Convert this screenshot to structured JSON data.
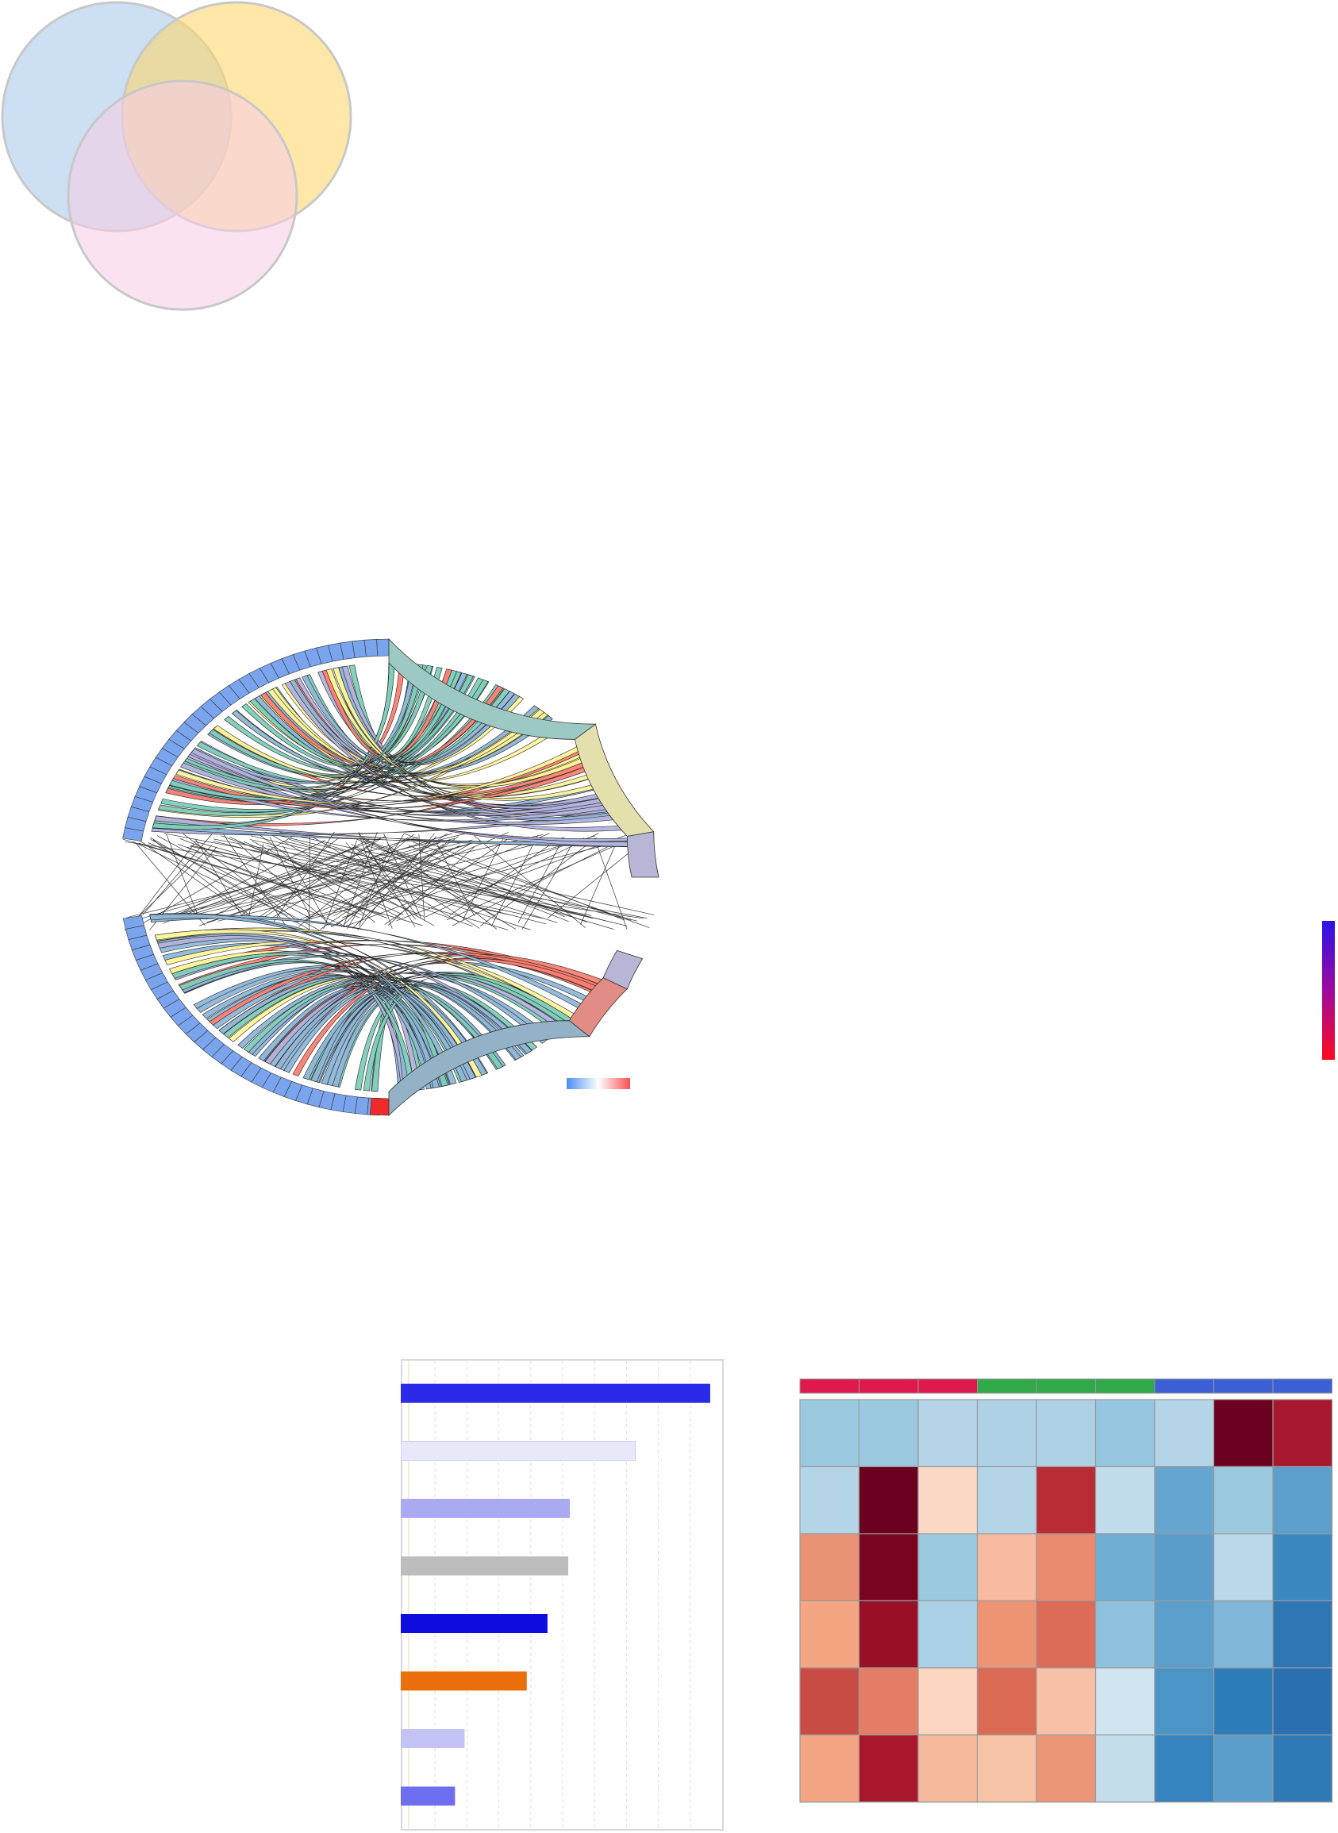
{
  "figure": {
    "venn": {
      "circles": [
        {
          "key": "A",
          "fill": "#a8c8e8"
        },
        {
          "key": "B",
          "fill": "#fdd56b"
        },
        {
          "key": "C",
          "fill": "#f6cde6"
        }
      ],
      "stroke": "#c8c8c8"
    },
    "chord": {
      "outer_ring_color": "#7aa5ee",
      "top_chord_colors": [
        "#7fcdbb",
        "#fff59d",
        "#b3b3de",
        "#fb8072",
        "#8fb7d8"
      ],
      "bottom_chord_colors": [
        "#8fb7d8",
        "#7fcdbb",
        "#fff59d",
        "#b3b3de",
        "#fb8072"
      ],
      "sector_colors": {
        "teal": "#9cc9c3",
        "olive": "#e3e0ae",
        "lavender": "#b7b6d6",
        "steel": "#93b2c8",
        "salmon": "#e28c86"
      },
      "legend_gradient": [
        "#4a8ef5",
        "#ffffff",
        "#fa5050"
      ]
    },
    "side_colorbar": {
      "colors": [
        "#2a14e6",
        "#9e0aa0",
        "#ff0a1e"
      ]
    },
    "chart_data": [
      {
        "type": "bar",
        "orientation": "horizontal",
        "categories": [
          "",
          "",
          "",
          "",
          "",
          "",
          "",
          ""
        ],
        "values": [
          9.7,
          7.35,
          5.3,
          5.25,
          4.6,
          3.95,
          2.0,
          1.7
        ],
        "xlim": [
          0,
          10
        ],
        "grid": true,
        "colors": [
          "#2b2ae8",
          "#e9e8fb",
          "#aaaaf2",
          "#bdbdbd",
          "#0d0ddf",
          "#ea6e0c",
          "#c3c3f6",
          "#6e6ef0"
        ]
      },
      {
        "type": "heatmap",
        "rows": 6,
        "cols": 9,
        "group_colors": [
          "#de1a4c",
          "#de1a4c",
          "#de1a4c",
          "#31a84a",
          "#31a84a",
          "#31a84a",
          "#3d5fd6",
          "#3d5fd6",
          "#3d5fd6"
        ],
        "cells": [
          [
            "#9bcae0",
            "#9bcae0",
            "#b4d5e7",
            "#aed1e6",
            "#aed1e6",
            "#95c5df",
            "#b4d5e7",
            "#6b001f",
            "#a7182e"
          ],
          [
            "#b4d5e7",
            "#6b001f",
            "#fcd9c6",
            "#b4d5e7",
            "#b92b35",
            "#c1dcea",
            "#65a6d0",
            "#9bcae0",
            "#5c9fcc"
          ],
          [
            "#ea9274",
            "#790420",
            "#9bcae0",
            "#f8bba0",
            "#ea8a6f",
            "#70aed4",
            "#5a9dcb",
            "#b9d8e9",
            "#3b88c0"
          ],
          [
            "#f4a582",
            "#990f26",
            "#a9d0e5",
            "#ec9474",
            "#dc6b58",
            "#8ec1dd",
            "#5c9fcc",
            "#80b6d8",
            "#2f77b4"
          ],
          [
            "#c84c44",
            "#e37d65",
            "#fcd6c1",
            "#db6a55",
            "#f8c1a5",
            "#d0e5f0",
            "#4a95c5",
            "#2e7dbb",
            "#2a70b0"
          ],
          [
            "#f3a584",
            "#a8172c",
            "#f7b99c",
            "#f8c4a8",
            "#ec9677",
            "#c3ddeb",
            "#3583bf",
            "#5a9fcc",
            "#3079b7"
          ]
        ]
      }
    ]
  }
}
